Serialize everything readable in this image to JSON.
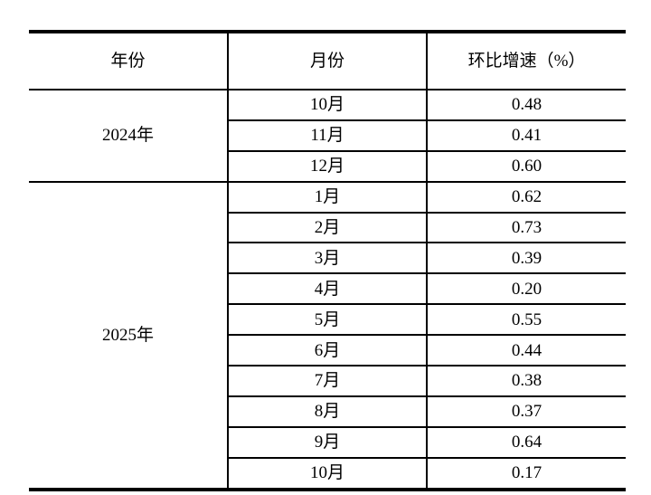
{
  "page": {
    "background_color": "#ffffff",
    "text_color": "#000000",
    "rule_color": "#000000"
  },
  "table": {
    "headers": {
      "year": "年份",
      "month": "月份",
      "growth": "环比增速（%）"
    },
    "groups": [
      {
        "year": "2024年",
        "rows": [
          {
            "month": "10月",
            "value": "0.48"
          },
          {
            "month": "11月",
            "value": "0.41"
          },
          {
            "month": "12月",
            "value": "0.60"
          }
        ]
      },
      {
        "year": "2025年",
        "rows": [
          {
            "month": "1月",
            "value": "0.62"
          },
          {
            "month": "2月",
            "value": "0.73"
          },
          {
            "month": "3月",
            "value": "0.39"
          },
          {
            "month": "4月",
            "value": "0.20"
          },
          {
            "month": "5月",
            "value": "0.55"
          },
          {
            "month": "6月",
            "value": "0.44"
          },
          {
            "month": "7月",
            "value": "0.38"
          },
          {
            "month": "8月",
            "value": "0.37"
          },
          {
            "month": "9月",
            "value": "0.64"
          },
          {
            "month": "10月",
            "value": "0.17"
          }
        ]
      }
    ]
  }
}
